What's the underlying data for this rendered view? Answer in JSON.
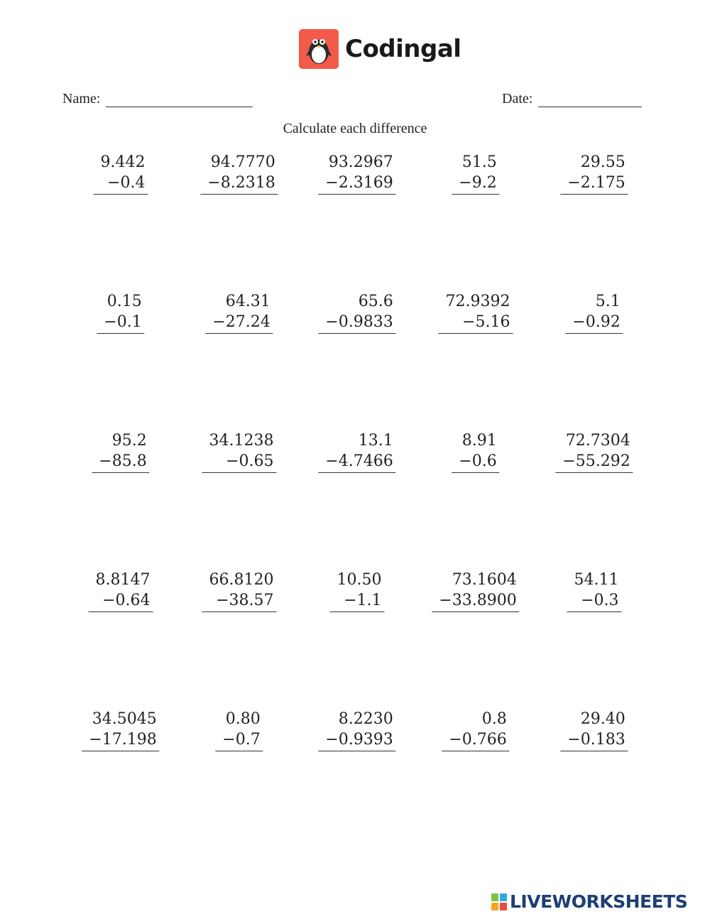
{
  "brand": {
    "name": "Codingal",
    "color": "#f25a4a",
    "icon": "penguin-icon"
  },
  "header": {
    "name_label": "Name:",
    "date_label": "Date:"
  },
  "instructions": "Calculate each difference",
  "problems": [
    {
      "top": "9.442",
      "bottom": "−0.4"
    },
    {
      "top": "94.7770",
      "bottom": "−8.2318"
    },
    {
      "top": "93.2967",
      "bottom": "−2.3169"
    },
    {
      "top": "51.5",
      "bottom": "−9.2"
    },
    {
      "top": "29.55",
      "bottom": "−2.175"
    },
    {
      "top": "0.15",
      "bottom": "−0.1"
    },
    {
      "top": "64.31",
      "bottom": "−27.24"
    },
    {
      "top": "65.6",
      "bottom": "−0.9833"
    },
    {
      "top": "72.9392",
      "bottom": "−5.16"
    },
    {
      "top": "5.1",
      "bottom": "−0.92"
    },
    {
      "top": "95.2",
      "bottom": "−85.8"
    },
    {
      "top": "34.1238",
      "bottom": "−0.65"
    },
    {
      "top": "13.1",
      "bottom": "−4.7466"
    },
    {
      "top": "8.91",
      "bottom": "−0.6"
    },
    {
      "top": "72.7304",
      "bottom": "−55.292"
    },
    {
      "top": "8.8147",
      "bottom": "−0.64"
    },
    {
      "top": "66.8120",
      "bottom": "−38.57"
    },
    {
      "top": "10.50",
      "bottom": "−1.1"
    },
    {
      "top": "73.1604",
      "bottom": "−33.8900"
    },
    {
      "top": "54.11",
      "bottom": "−0.3"
    },
    {
      "top": "34.5045",
      "bottom": "−17.198"
    },
    {
      "top": "0.80",
      "bottom": "−0.7"
    },
    {
      "top": "8.2230",
      "bottom": "−0.9393"
    },
    {
      "top": "0.8",
      "bottom": "−0.766"
    },
    {
      "top": "29.40",
      "bottom": "−0.183"
    }
  ],
  "footer": {
    "logo_text": "LIVEWORKSHEETS",
    "logo_color": "#1d3f73"
  }
}
